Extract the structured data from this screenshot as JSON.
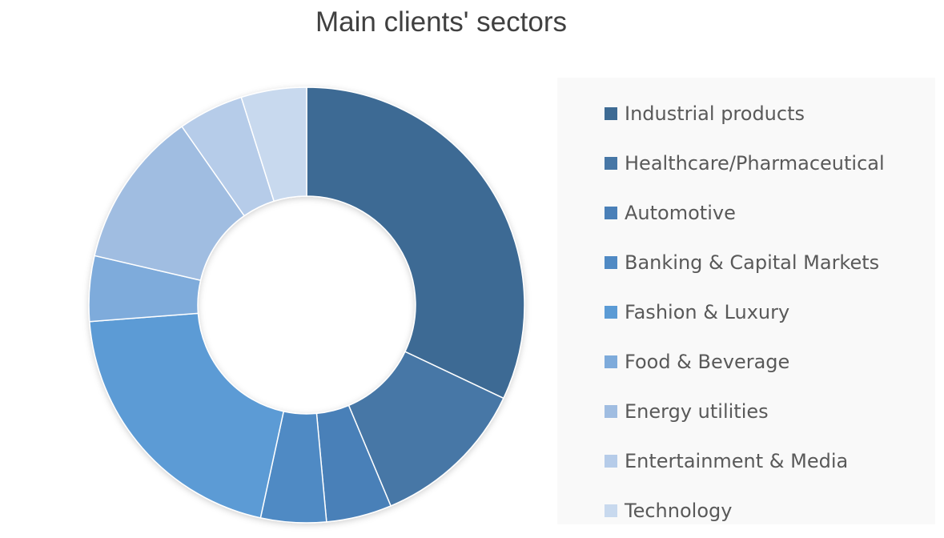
{
  "chart_data": {
    "type": "pie",
    "variant": "donut",
    "title": "Main clients' sectors",
    "legend_position": "right",
    "slices": [
      {
        "label": "Industrial products",
        "value": 33,
        "color": "#3e6b94"
      },
      {
        "label": "Healthcare/Pharmaceutical",
        "value": 12,
        "color": "#4777a6"
      },
      {
        "label": "Automotive",
        "value": 5,
        "color": "#4a80b8"
      },
      {
        "label": "Banking & Capital Markets",
        "value": 5,
        "color": "#508ac4"
      },
      {
        "label": "Fashion & Luxury",
        "value": 21,
        "color": "#5b9bd5"
      },
      {
        "label": "Food & Beverage",
        "value": 5,
        "color": "#7eabdb"
      },
      {
        "label": "Energy utilities",
        "value": 12,
        "color": "#a0bde1"
      },
      {
        "label": "Entertainment & Media",
        "value": 5,
        "color": "#b6cce9"
      },
      {
        "label": "Technology",
        "value": 5,
        "color": "#c8d9ee"
      }
    ]
  }
}
